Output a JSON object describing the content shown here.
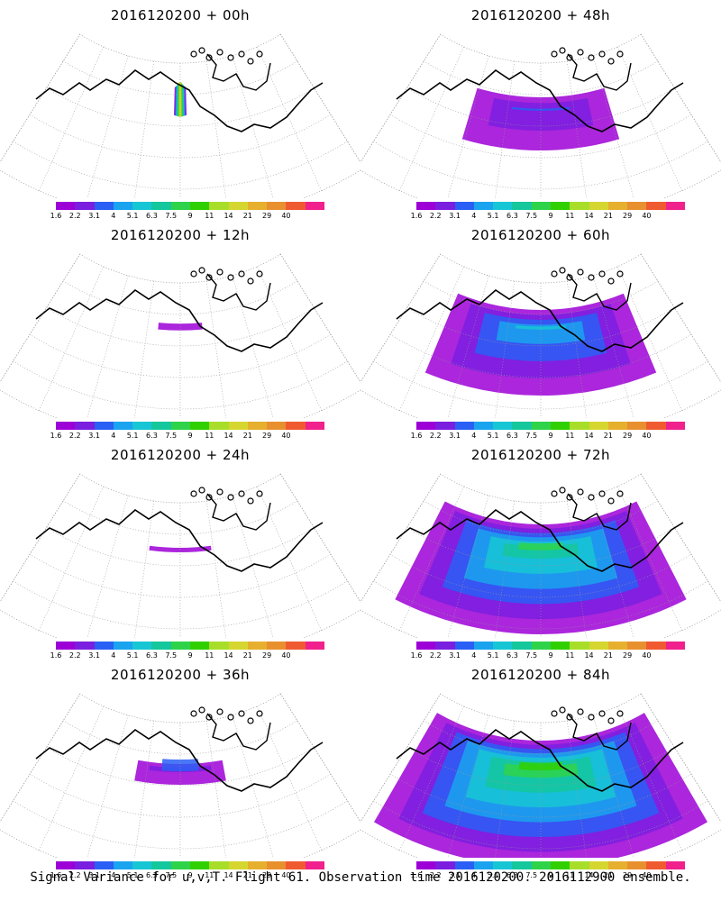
{
  "panels": [
    {
      "title": "2016120200 + 00h",
      "spread": 0.05,
      "max_level": 9
    },
    {
      "title": "2016120200 + 48h",
      "spread": 0.55,
      "max_level": 2
    },
    {
      "title": "2016120200 + 12h",
      "spread": 0.18,
      "max_level": 0
    },
    {
      "title": "2016120200 + 60h",
      "spread": 0.75,
      "max_level": 4
    },
    {
      "title": "2016120200 + 24h",
      "spread": 0.25,
      "max_level": 0
    },
    {
      "title": "2016120200 + 72h",
      "spread": 0.9,
      "max_level": 6
    },
    {
      "title": "2016120200 + 36h",
      "spread": 0.35,
      "max_level": 2
    },
    {
      "title": "2016120200 + 84h",
      "spread": 1.0,
      "max_level": 7
    }
  ],
  "colorbar": {
    "labels": [
      "1.6",
      "2.2",
      "3.1",
      "4",
      "5.1",
      "6.3",
      "7.5",
      "9",
      "11",
      "14",
      "21",
      "29",
      "40"
    ],
    "colors": [
      "#9c00d6",
      "#7a1ee0",
      "#2a5ff5",
      "#1aa4ef",
      "#17c6d4",
      "#14c79c",
      "#2ed34a",
      "#30d000",
      "#a8de2a",
      "#d6d630",
      "#e6b02e",
      "#e8902e",
      "#f05a30",
      "#f0208c"
    ]
  },
  "footer": "Signal Variance for u,v,T. Flight 61. Observation time 2016120200. 2016112900 ensemble."
}
